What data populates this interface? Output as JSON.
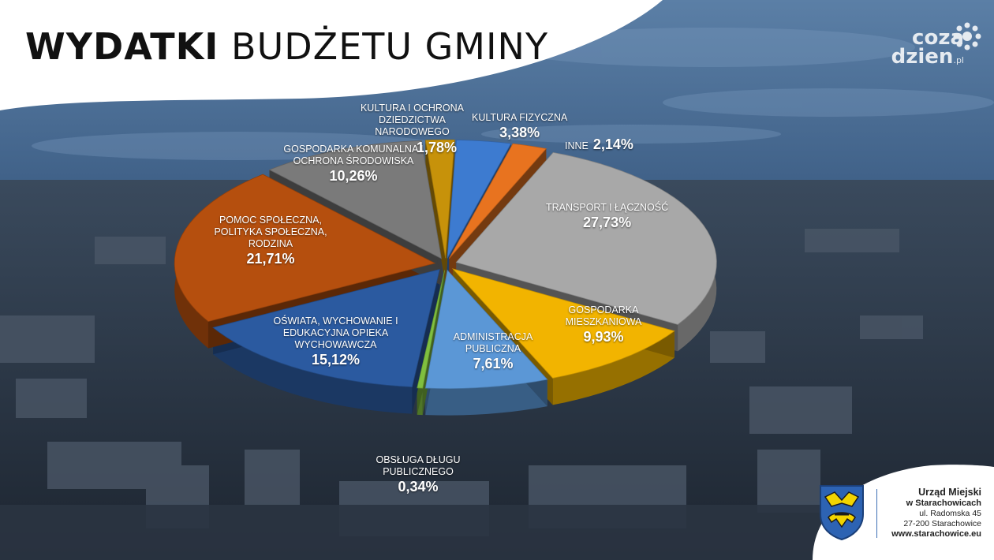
{
  "title": {
    "bold": "WYDATKI",
    "regular": "BUDŻETU GMINY"
  },
  "brand": {
    "line1": "coza",
    "line2": "dzien",
    "tld": ".pl"
  },
  "footer": {
    "office_name": "Urząd Miejski",
    "office_city": "w Starachowicach",
    "street": "ul. Radomska 45",
    "postal": "27-200 Starachowice",
    "web": "www.starachowice.eu"
  },
  "colors": {
    "slice_blue_dark": "#234d8a",
    "slice_orange": "#a84a10",
    "slice_gray": "#7d7d7d",
    "slice_yellow": "#f0b400",
    "slice_light_blue": "#4d8bd3",
    "slice_green": "#79b13d",
    "slice_light_gray": "#a9a9a9"
  },
  "chart_data": {
    "type": "pie",
    "title": "WYDATKI BUDŻETU GMINY",
    "style": "3d-exploded",
    "slices": [
      {
        "label": "KULTURA FIZYCZNA",
        "value": 3.38,
        "display": "3,38%",
        "color": "#3d7bd0"
      },
      {
        "label": "INNE",
        "value": 2.14,
        "display": "2,14%",
        "color": "#e8731f"
      },
      {
        "label": "TRANSPORT I ŁĄCZNOŚĆ",
        "value": 27.73,
        "display": "27,73%",
        "color": "#a8a8a8"
      },
      {
        "label": "GOSPODARKA MIESZKANIOWA",
        "value": 9.93,
        "display": "9,93%",
        "color": "#f2b400"
      },
      {
        "label": "ADMINISTRACJA PUBLICZNA",
        "value": 7.61,
        "display": "7,61%",
        "color": "#5b97d6"
      },
      {
        "label": "OBSŁUGA DŁUGU PUBLICZNEGO",
        "value": 0.34,
        "display": "0,34%",
        "color": "#7fbf3f"
      },
      {
        "label": "OŚWIATA, WYCHOWANIE I EDUKACYJNA OPIEKA WYCHOWAWCZA",
        "value": 15.12,
        "display": "15,12%",
        "color": "#2b5aa0"
      },
      {
        "label": "POMOC SPOŁECZNA, POLITYKA SPOŁECZNA, RODZINA",
        "value": 21.71,
        "display": "21,71%",
        "color": "#b54f0e"
      },
      {
        "label": "GOSPODARKA KOMUNALNA I OCHRONA ŚRODOWISKA",
        "value": 10.26,
        "display": "10,26%",
        "color": "#7a7a7a"
      },
      {
        "label": "KULTURA I OCHRONA DZIEDZICTWA NARODOWEGO",
        "value": 1.78,
        "display": "1,78%",
        "color": "#c7920a"
      }
    ]
  }
}
